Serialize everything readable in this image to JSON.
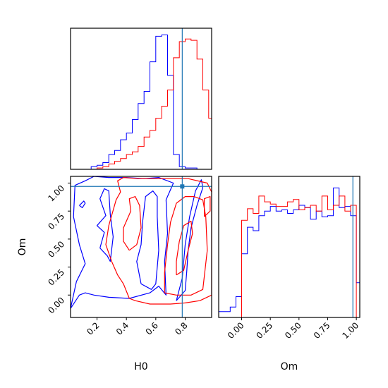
{
  "chart_data": [
    {
      "panel": "H0 marginal",
      "type": "histogram",
      "xlim": [
        0.02,
        0.98
      ],
      "truth": {
        "H0": 0.78
      },
      "colors": {
        "series_a": "#0000ff",
        "series_b": "#ff0000",
        "truth": "#1f77b4"
      },
      "bins": [
        0.0,
        0.04,
        0.08,
        0.12,
        0.16,
        0.2,
        0.24,
        0.28,
        0.32,
        0.36,
        0.4,
        0.44,
        0.48,
        0.52,
        0.56,
        0.6,
        0.64,
        0.68,
        0.72,
        0.76,
        0.8,
        0.84,
        0.88,
        0.92,
        0.96,
        1.0
      ],
      "series": [
        {
          "color": "#0000ff",
          "values": [
            0,
            0,
            0,
            0,
            0.02,
            0.03,
            0.05,
            0.11,
            0.14,
            0.22,
            0.27,
            0.37,
            0.49,
            0.58,
            0.8,
            0.99,
            1.0,
            0.7,
            0.11,
            0.02,
            0.01,
            0.01,
            0,
            0,
            0
          ]
        },
        {
          "color": "#ff0000",
          "values": [
            0,
            0,
            0,
            0,
            0,
            0.01,
            0.02,
            0.04,
            0.06,
            0.08,
            0.11,
            0.13,
            0.17,
            0.24,
            0.29,
            0.38,
            0.47,
            0.59,
            0.83,
            0.95,
            0.97,
            0.96,
            0.82,
            0.59,
            0.38
          ]
        }
      ]
    },
    {
      "panel": "H0 vs Om",
      "type": "contour",
      "xlabel": "H0",
      "ylabel": "Om",
      "xlim": [
        0.02,
        0.98
      ],
      "ylim": [
        -0.2,
        1.06
      ],
      "xticks": [
        "0.2",
        "0.4",
        "0.6",
        "0.8"
      ],
      "yticks": [
        "0.00",
        "0.25",
        "0.50",
        "0.75",
        "1.00"
      ],
      "truth": {
        "H0": 0.78,
        "Om": 0.97
      },
      "contours": [
        {
          "color": "#0000ff",
          "points": [
            [
              0.02,
              -0.12
            ],
            [
              0.08,
              0.0
            ],
            [
              0.12,
              0.02
            ],
            [
              0.18,
              0.0
            ],
            [
              0.28,
              -0.02
            ],
            [
              0.42,
              -0.03
            ],
            [
              0.56,
              0.02
            ],
            [
              0.62,
              0.08
            ],
            [
              0.67,
              0.0
            ],
            [
              0.66,
              0.3
            ],
            [
              0.68,
              0.55
            ],
            [
              0.67,
              0.85
            ],
            [
              0.72,
              1.0
            ],
            [
              0.62,
              1.05
            ],
            [
              0.52,
              1.04
            ],
            [
              0.4,
              1.05
            ],
            [
              0.28,
              1.05
            ],
            [
              0.18,
              1.06
            ],
            [
              0.12,
              1.02
            ],
            [
              0.05,
              0.98
            ],
            [
              0.04,
              0.7
            ],
            [
              0.08,
              0.45
            ],
            [
              0.12,
              0.28
            ],
            [
              0.06,
              0.12
            ],
            [
              0.02,
              -0.12
            ]
          ]
        },
        {
          "color": "#0000ff",
          "points": [
            [
              0.22,
              0.42
            ],
            [
              0.27,
              0.35
            ],
            [
              0.29,
              0.3
            ],
            [
              0.31,
              0.52
            ],
            [
              0.29,
              0.72
            ],
            [
              0.28,
              0.93
            ],
            [
              0.25,
              0.95
            ],
            [
              0.22,
              0.86
            ],
            [
              0.26,
              0.71
            ],
            [
              0.2,
              0.62
            ],
            [
              0.25,
              0.56
            ],
            [
              0.22,
              0.42
            ]
          ]
        },
        {
          "color": "#0000ff",
          "points": [
            [
              0.5,
              0.1
            ],
            [
              0.57,
              0.05
            ],
            [
              0.6,
              0.1
            ],
            [
              0.62,
              0.4
            ],
            [
              0.61,
              0.7
            ],
            [
              0.61,
              0.88
            ],
            [
              0.58,
              0.93
            ],
            [
              0.53,
              0.88
            ],
            [
              0.51,
              0.65
            ],
            [
              0.5,
              0.45
            ],
            [
              0.47,
              0.3
            ],
            [
              0.5,
              0.1
            ]
          ]
        },
        {
          "color": "#0000ff",
          "points": [
            [
              0.74,
              -0.05
            ],
            [
              0.78,
              0.15
            ],
            [
              0.8,
              0.45
            ],
            [
              0.83,
              0.7
            ],
            [
              0.87,
              0.93
            ],
            [
              0.91,
              1.03
            ],
            [
              0.92,
              0.96
            ],
            [
              0.88,
              0.8
            ],
            [
              0.84,
              0.6
            ],
            [
              0.82,
              0.4
            ],
            [
              0.81,
              0.2
            ],
            [
              0.8,
              0.04
            ],
            [
              0.74,
              -0.05
            ]
          ]
        },
        {
          "color": "#0000ff",
          "points": [
            [
              0.08,
              0.8
            ],
            [
              0.11,
              0.84
            ],
            [
              0.12,
              0.82
            ],
            [
              0.1,
              0.78
            ],
            [
              0.08,
              0.8
            ]
          ]
        },
        {
          "color": "#ff0000",
          "points": [
            [
              0.38,
              0.1
            ],
            [
              0.42,
              -0.03
            ],
            [
              0.46,
              -0.05
            ],
            [
              0.56,
              -0.08
            ],
            [
              0.7,
              -0.08
            ],
            [
              0.8,
              -0.07
            ],
            [
              0.9,
              -0.05
            ],
            [
              0.98,
              0.0
            ],
            [
              0.98,
              0.6
            ],
            [
              0.98,
              0.92
            ],
            [
              0.95,
              1.0
            ],
            [
              0.82,
              1.04
            ],
            [
              0.72,
              1.04
            ],
            [
              0.6,
              1.04
            ],
            [
              0.48,
              1.04
            ],
            [
              0.38,
              1.05
            ],
            [
              0.34,
              1.02
            ],
            [
              0.36,
              0.92
            ],
            [
              0.33,
              0.85
            ],
            [
              0.28,
              0.62
            ],
            [
              0.26,
              0.45
            ],
            [
              0.3,
              0.3
            ],
            [
              0.34,
              0.18
            ],
            [
              0.38,
              0.1
            ]
          ]
        },
        {
          "color": "#ff0000",
          "points": [
            [
              0.42,
              0.4
            ],
            [
              0.47,
              0.45
            ],
            [
              0.5,
              0.6
            ],
            [
              0.49,
              0.8
            ],
            [
              0.46,
              0.88
            ],
            [
              0.42,
              0.86
            ],
            [
              0.43,
              0.75
            ],
            [
              0.38,
              0.6
            ],
            [
              0.38,
              0.48
            ],
            [
              0.42,
              0.4
            ]
          ]
        },
        {
          "color": "#ff0000",
          "points": [
            [
              0.66,
              0.02
            ],
            [
              0.74,
              0.0
            ],
            [
              0.84,
              0.0
            ],
            [
              0.92,
              0.05
            ],
            [
              0.95,
              0.4
            ],
            [
              0.94,
              0.7
            ],
            [
              0.92,
              0.85
            ],
            [
              0.86,
              0.88
            ],
            [
              0.8,
              0.88
            ],
            [
              0.74,
              0.82
            ],
            [
              0.7,
              0.65
            ],
            [
              0.68,
              0.45
            ],
            [
              0.66,
              0.2
            ],
            [
              0.66,
              0.02
            ]
          ]
        },
        {
          "color": "#ff0000",
          "points": [
            [
              0.74,
              0.18
            ],
            [
              0.79,
              0.22
            ],
            [
              0.82,
              0.4
            ],
            [
              0.85,
              0.55
            ],
            [
              0.84,
              0.66
            ],
            [
              0.79,
              0.62
            ],
            [
              0.76,
              0.48
            ],
            [
              0.74,
              0.3
            ],
            [
              0.74,
              0.18
            ]
          ]
        },
        {
          "color": "#ff0000",
          "points": [
            [
              0.93,
              0.7
            ],
            [
              0.97,
              0.75
            ],
            [
              0.97,
              0.88
            ],
            [
              0.93,
              0.86
            ],
            [
              0.93,
              0.7
            ]
          ]
        }
      ]
    },
    {
      "panel": "Om marginal",
      "type": "histogram",
      "xlabel": "Om",
      "xlim": [
        -0.2,
        1.03
      ],
      "xticks": [
        "0.00",
        "0.25",
        "0.50",
        "0.75",
        "1.00"
      ],
      "truth": {
        "Om": 0.97
      },
      "bins": [
        -0.2,
        -0.15,
        -0.1,
        -0.05,
        0.0,
        0.05,
        0.1,
        0.15,
        0.2,
        0.25,
        0.3,
        0.35,
        0.4,
        0.45,
        0.5,
        0.55,
        0.6,
        0.65,
        0.7,
        0.75,
        0.8,
        0.85,
        0.9,
        0.95,
        1.0,
        1.05
      ],
      "series": [
        {
          "color": "#0000ff",
          "values": [
            0.05,
            0.05,
            0.09,
            0.18,
            0.55,
            0.78,
            0.75,
            0.88,
            0.92,
            0.96,
            0.92,
            0.93,
            0.9,
            0.93,
            0.97,
            0.95,
            0.85,
            0.92,
            0.87,
            0.88,
            1.12,
            0.95,
            0.96,
            0.88,
            0.3
          ]
        },
        {
          "color": "#ff0000",
          "values": [
            0,
            0,
            0,
            0,
            0.84,
            0.94,
            0.9,
            1.05,
            1.0,
            0.98,
            0.96,
            0.96,
            1.0,
            1.02,
            0.93,
            0.95,
            0.97,
            0.92,
            1.05,
            0.93,
            0.97,
            1.05,
            0.92,
            0.97,
            0
          ]
        }
      ]
    }
  ]
}
